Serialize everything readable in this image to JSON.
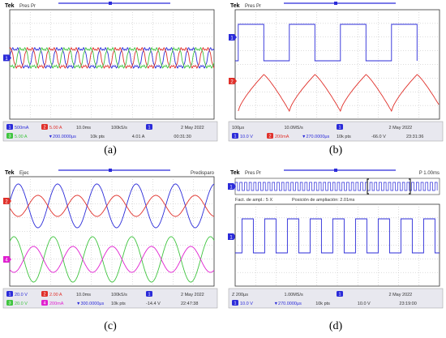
{
  "colors": {
    "ch1": "#2b2bd9",
    "ch2": "#e0302a",
    "ch3": "#3ec43e",
    "ch4": "#e020d0",
    "grid": "#b8b8b8",
    "frame": "#333333",
    "orange": "#e07820"
  },
  "panels": [
    {
      "id": "a",
      "caption": "(a)",
      "header": {
        "brand": "Tek",
        "mode": "Pres Pr",
        "extra": ""
      },
      "traces": [
        {
          "name": "1",
          "color_key": "ch1",
          "kind": "multilevel"
        },
        {
          "name": "2",
          "color_key": "ch2",
          "kind": "multilevel"
        },
        {
          "name": "3",
          "color_key": "ch3",
          "kind": "multilevel"
        }
      ],
      "markers": [
        {
          "label": "1",
          "color_key": "ch1"
        }
      ],
      "footer": {
        "row1": [
          {
            "badge": "1",
            "text": "500mA",
            "color_key": "ch1"
          },
          {
            "badge": "2",
            "text": "5.00 A",
            "color_key": "ch2"
          },
          {
            "badge": "",
            "text": "10.0ms",
            "color_key": "frame"
          },
          {
            "badge": "",
            "text": "100kS/s",
            "color_key": "frame"
          },
          {
            "badge": "1",
            "text": "",
            "color_key": "ch1"
          },
          {
            "badge": "",
            "text": "2 May 2022",
            "color_key": "frame"
          }
        ],
        "row2": [
          {
            "badge": "3",
            "text": "5.00 A",
            "color_key": "ch3"
          },
          {
            "badge": "",
            "text": "▼200.0000μs",
            "color_key": "ch1"
          },
          {
            "badge": "",
            "text": "10k pts",
            "color_key": "frame"
          },
          {
            "badge": "",
            "text": "4.01 A",
            "color_key": "frame"
          },
          {
            "badge": "",
            "text": "00:31:30",
            "color_key": "frame"
          }
        ]
      }
    },
    {
      "id": "b",
      "caption": "(b)",
      "header": {
        "brand": "Tek",
        "mode": "Pres Pr",
        "extra": ""
      },
      "traces": [
        {
          "name": "1",
          "color_key": "ch1",
          "kind": "square"
        },
        {
          "name": "2",
          "color_key": "ch2",
          "kind": "ramp"
        }
      ],
      "markers": [
        {
          "label": "1",
          "color_key": "ch1"
        },
        {
          "label": "2",
          "color_key": "ch2"
        }
      ],
      "footer": {
        "row1": [
          {
            "badge": "",
            "text": "100μs",
            "color_key": "frame"
          },
          {
            "badge": "",
            "text": "10.0MS/s",
            "color_key": "frame"
          },
          {
            "badge": "1",
            "text": "",
            "color_key": "ch1"
          },
          {
            "badge": "",
            "text": "2 May 2022",
            "color_key": "frame"
          }
        ],
        "row2": [
          {
            "badge": "1",
            "text": "10.0 V",
            "color_key": "ch1"
          },
          {
            "badge": "2",
            "text": "200mA",
            "color_key": "ch2"
          },
          {
            "badge": "",
            "text": "▼270.0000μs",
            "color_key": "ch1"
          },
          {
            "badge": "",
            "text": "10k pts",
            "color_key": "frame"
          },
          {
            "badge": "",
            "text": "-66.0 V",
            "color_key": "frame"
          },
          {
            "badge": "",
            "text": "23:31:36",
            "color_key": "frame"
          }
        ]
      }
    },
    {
      "id": "c",
      "caption": "(c)",
      "header": {
        "brand": "Tek",
        "mode": "Ejec",
        "extra": "Predisparo"
      },
      "traces": [
        {
          "name": "1",
          "color_key": "ch1",
          "kind": "sine"
        },
        {
          "name": "2",
          "color_key": "ch2",
          "kind": "sine"
        },
        {
          "name": "3",
          "color_key": "ch3",
          "kind": "sine"
        },
        {
          "name": "4",
          "color_key": "ch4",
          "kind": "sine"
        }
      ],
      "markers": [
        {
          "label": "2",
          "color_key": "ch2"
        },
        {
          "label": "4",
          "color_key": "ch4"
        }
      ],
      "footer": {
        "row1": [
          {
            "badge": "1",
            "text": "20.0 V",
            "color_key": "ch1"
          },
          {
            "badge": "2",
            "text": "2.00 A",
            "color_key": "ch2"
          },
          {
            "badge": "",
            "text": "10.0ms",
            "color_key": "frame"
          },
          {
            "badge": "",
            "text": "100kS/s",
            "color_key": "frame"
          },
          {
            "badge": "1",
            "text": "",
            "color_key": "ch1"
          },
          {
            "badge": "",
            "text": "2 May 2022",
            "color_key": "frame"
          }
        ],
        "row2": [
          {
            "badge": "3",
            "text": "20.0 V",
            "color_key": "ch3"
          },
          {
            "badge": "4",
            "text": "200mA",
            "color_key": "ch4"
          },
          {
            "badge": "",
            "text": "▼300.0000μs",
            "color_key": "ch1"
          },
          {
            "badge": "",
            "text": "10k pts",
            "color_key": "frame"
          },
          {
            "badge": "",
            "text": "-14.4 V",
            "color_key": "frame"
          },
          {
            "badge": "",
            "text": "22:47:38",
            "color_key": "frame"
          }
        ]
      }
    },
    {
      "id": "d",
      "caption": "(d)",
      "header": {
        "brand": "Tek",
        "mode": "Pres Pr",
        "extra": "P 1.00ms"
      },
      "zoom": {
        "factor": "Fact. de ampl.: 5 X",
        "position": "Posición de ampliación: 2.01ms"
      },
      "traces": [
        {
          "name": "1",
          "color_key": "ch1",
          "kind": "square"
        }
      ],
      "markers": [
        {
          "label": "1",
          "color_key": "ch1"
        }
      ],
      "footer": {
        "row1": [
          {
            "badge": "",
            "text": "Z 200μs",
            "color_key": "frame"
          },
          {
            "badge": "",
            "text": "1.00MS/s",
            "color_key": "frame"
          },
          {
            "badge": "1",
            "text": "",
            "color_key": "ch1"
          },
          {
            "badge": "",
            "text": "2 May 2022",
            "color_key": "frame"
          }
        ],
        "row2": [
          {
            "badge": "1",
            "text": "10.0 V",
            "color_key": "ch1"
          },
          {
            "badge": "",
            "text": "▼270.0000μs",
            "color_key": "ch1"
          },
          {
            "badge": "",
            "text": "10k pts",
            "color_key": "frame"
          },
          {
            "badge": "",
            "text": "10.0 V",
            "color_key": "frame"
          },
          {
            "badge": "",
            "text": "23:19:00",
            "color_key": "frame"
          }
        ]
      }
    }
  ]
}
